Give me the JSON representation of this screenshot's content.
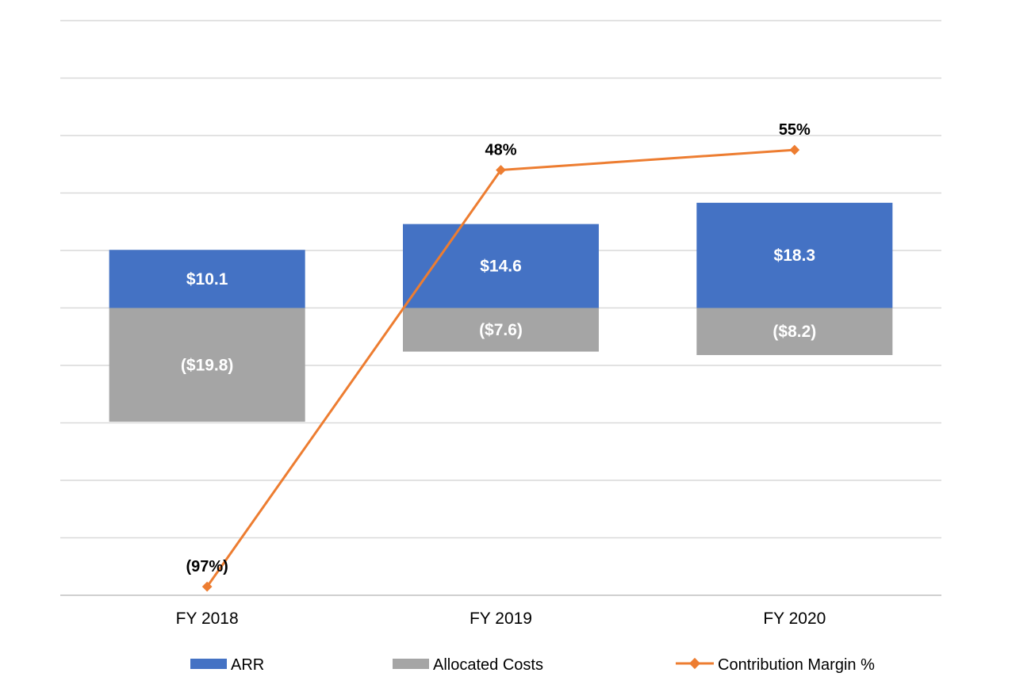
{
  "chart_data": {
    "type": "bar",
    "stacked": true,
    "categories": [
      "FY 2018",
      "FY 2019",
      "FY 2020"
    ],
    "ylim": [
      -50,
      50
    ],
    "grid": true,
    "legend_position": "bottom",
    "series": [
      {
        "name": "ARR",
        "type": "bar",
        "color": "#4472C4",
        "values": [
          10.1,
          14.6,
          18.3
        ],
        "labels": [
          "$10.1",
          "$14.6",
          "$18.3"
        ]
      },
      {
        "name": "Allocated Costs",
        "type": "bar",
        "color": "#A5A5A5",
        "values": [
          -19.8,
          -7.6,
          -8.2
        ],
        "labels": [
          "($19.8)",
          "($7.6)",
          "($8.2)"
        ]
      }
    ],
    "line_series": {
      "name": "Contribution Margin %",
      "type": "line",
      "color": "#ED7D31",
      "marker": "diamond",
      "secondary_axis": true,
      "values": [
        -97,
        48,
        55
      ],
      "labels": [
        "(97%)",
        "48%",
        "55%"
      ],
      "ylim": [
        -100,
        100
      ]
    }
  }
}
